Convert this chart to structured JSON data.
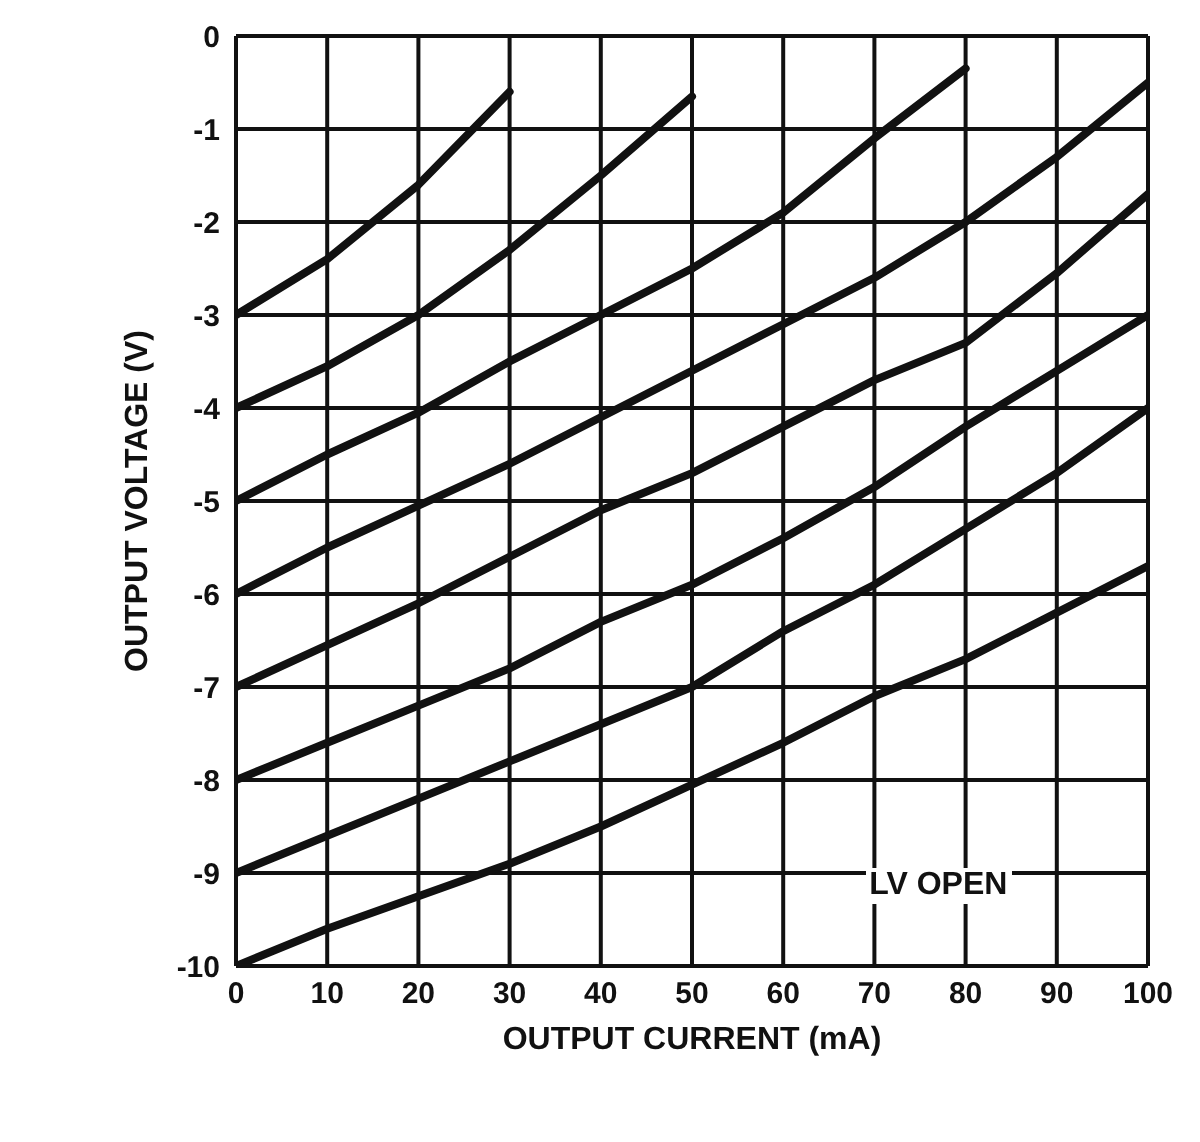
{
  "chart_data": {
    "type": "line",
    "xlabel": "OUTPUT CURRENT (mA)",
    "ylabel": "OUTPUT VOLTAGE (V)",
    "annotations": [
      "LV OPEN"
    ],
    "xlim": [
      0,
      100
    ],
    "xticks": [
      0,
      10,
      20,
      30,
      40,
      50,
      60,
      70,
      80,
      90,
      100
    ],
    "ylim": [
      -10,
      0
    ],
    "yticks": [
      -10,
      -9,
      -8,
      -7,
      -6,
      -5,
      -4,
      -3,
      -2,
      -1,
      0
    ],
    "grid": true,
    "marker": "none",
    "line_style": "solid",
    "series": [
      {
        "color": "#111111",
        "x": [
          0,
          10,
          20,
          30
        ],
        "values": [
          -3,
          -2.4,
          -1.6,
          -0.6
        ]
      },
      {
        "color": "#111111",
        "x": [
          0,
          10,
          20,
          30,
          40,
          50
        ],
        "values": [
          -4,
          -3.55,
          -3.0,
          -2.3,
          -1.5,
          -0.65
        ]
      },
      {
        "color": "#111111",
        "x": [
          0,
          10,
          20,
          30,
          40,
          50,
          60,
          70,
          80
        ],
        "values": [
          -5,
          -4.5,
          -4.05,
          -3.5,
          -3.0,
          -2.5,
          -1.9,
          -1.1,
          -0.35
        ]
      },
      {
        "color": "#111111",
        "x": [
          0,
          10,
          20,
          30,
          40,
          50,
          60,
          70,
          80,
          90,
          100
        ],
        "values": [
          -6,
          -5.5,
          -5.05,
          -4.6,
          -4.1,
          -3.6,
          -3.1,
          -2.6,
          -2.0,
          -1.3,
          -0.5
        ]
      },
      {
        "color": "#111111",
        "x": [
          0,
          10,
          20,
          30,
          40,
          50,
          60,
          70,
          80,
          90,
          100
        ],
        "values": [
          -7,
          -6.55,
          -6.1,
          -5.6,
          -5.1,
          -4.7,
          -4.2,
          -3.7,
          -3.3,
          -2.55,
          -1.7
        ]
      },
      {
        "color": "#111111",
        "x": [
          0,
          10,
          20,
          30,
          40,
          50,
          60,
          70,
          80,
          90,
          100
        ],
        "values": [
          -8,
          -7.6,
          -7.2,
          -6.8,
          -6.3,
          -5.9,
          -5.4,
          -4.85,
          -4.2,
          -3.6,
          -3.0
        ]
      },
      {
        "color": "#111111",
        "x": [
          0,
          10,
          20,
          30,
          40,
          50,
          60,
          70,
          80,
          90,
          100
        ],
        "values": [
          -9,
          -8.6,
          -8.2,
          -7.8,
          -7.4,
          -7.0,
          -6.4,
          -5.9,
          -5.3,
          -4.7,
          -4.0
        ]
      },
      {
        "color": "#111111",
        "x": [
          0,
          10,
          20,
          30,
          40,
          50,
          60,
          70,
          80,
          90,
          100
        ],
        "values": [
          -10,
          -9.6,
          -9.25,
          -8.9,
          -8.5,
          -8.05,
          -7.6,
          -7.1,
          -6.7,
          -6.2,
          -5.7
        ]
      }
    ]
  }
}
